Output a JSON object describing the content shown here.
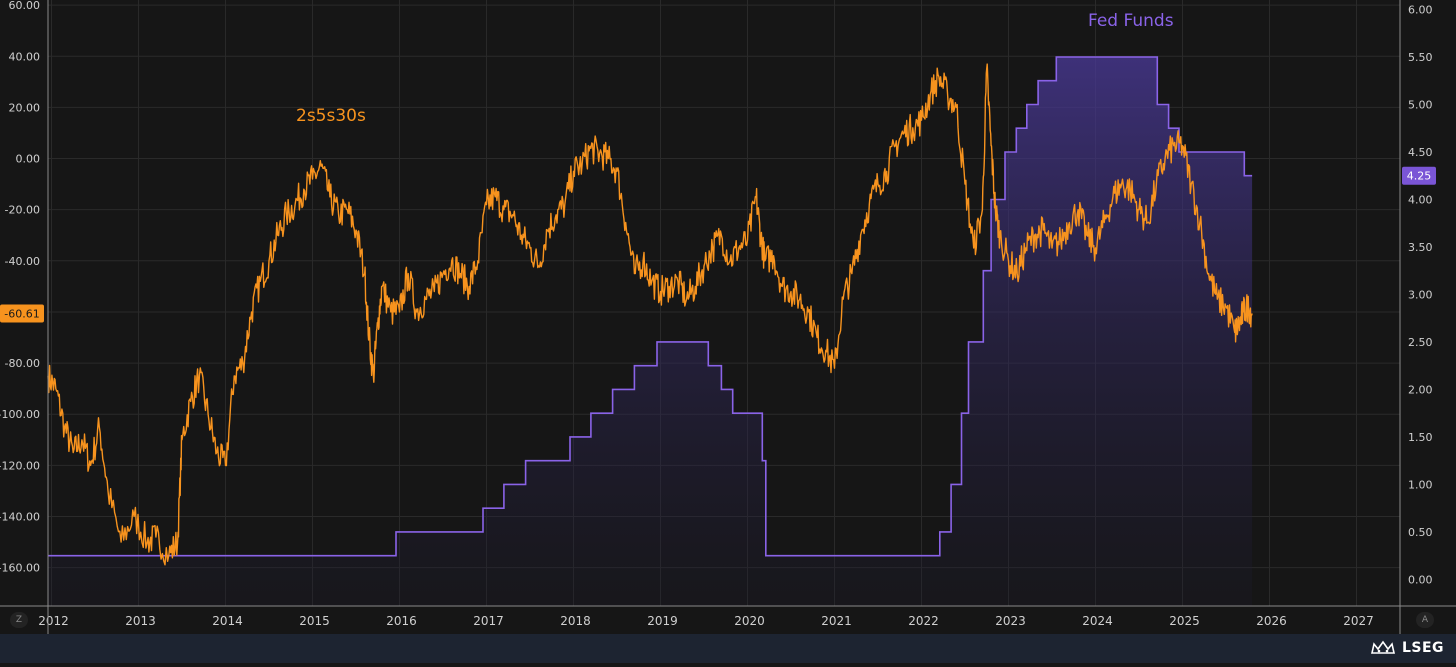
{
  "colors": {
    "background": "#161616",
    "grid": "#2a2a2a",
    "axis": "#d0d0d0",
    "spread_line": "#f7931e",
    "fed_line": "#8a63e8",
    "fed_fill_top": "#4b3a9a",
    "badge_left": "#f7931e",
    "badge_right": "#7a55d6"
  },
  "brand": {
    "name": "LSEG",
    "icon": "crown-logo-icon"
  },
  "corner_buttons": {
    "left": "Z",
    "right": "A"
  },
  "chart_data": {
    "type": "line",
    "x_ticks": [
      "2012",
      "2013",
      "2014",
      "2015",
      "2016",
      "2017",
      "2018",
      "2019",
      "2020",
      "2021",
      "2022",
      "2023",
      "2024",
      "2025",
      "2026",
      "2027"
    ],
    "xlim": [
      2011.96,
      2027.5
    ],
    "left_axis": {
      "ticks": [
        "60.00",
        "40.00",
        "20.00",
        "0.00",
        "-20.00",
        "-40.00",
        "-60.00",
        "-80.00",
        "-100.00",
        "-120.00",
        "-140.00",
        "-160.00"
      ],
      "range": [
        -175,
        62
      ],
      "current_value": "-60.61"
    },
    "right_axis": {
      "ticks": [
        "6.00",
        "5.50",
        "5.00",
        "4.50",
        "4.00",
        "3.50",
        "3.00",
        "2.50",
        "2.00",
        "1.50",
        "1.00",
        "0.50",
        "0.00"
      ],
      "range": [
        -0.28,
        6.1
      ],
      "current_value": "4.25"
    },
    "series": [
      {
        "name": "2s5s30s",
        "axis": "left",
        "x": [
          2011.96,
          2012.05,
          2012.15,
          2012.25,
          2012.35,
          2012.45,
          2012.55,
          2012.65,
          2012.8,
          2012.95,
          2013.1,
          2013.2,
          2013.35,
          2013.45,
          2013.5,
          2013.6,
          2013.7,
          2013.8,
          2013.9,
          2014.0,
          2014.1,
          2014.2,
          2014.3,
          2014.4,
          2014.5,
          2014.6,
          2014.7,
          2014.8,
          2014.9,
          2015.0,
          2015.1,
          2015.2,
          2015.3,
          2015.4,
          2015.5,
          2015.6,
          2015.65,
          2015.7,
          2015.75,
          2015.8,
          2015.9,
          2016.0,
          2016.1,
          2016.2,
          2016.3,
          2016.4,
          2016.5,
          2016.6,
          2016.7,
          2016.8,
          2016.9,
          2017.0,
          2017.1,
          2017.2,
          2017.3,
          2017.4,
          2017.5,
          2017.6,
          2017.7,
          2017.8,
          2017.9,
          2018.0,
          2018.1,
          2018.2,
          2018.3,
          2018.4,
          2018.5,
          2018.6,
          2018.7,
          2018.8,
          2018.9,
          2019.0,
          2019.1,
          2019.2,
          2019.3,
          2019.4,
          2019.5,
          2019.6,
          2019.7,
          2019.8,
          2019.9,
          2020.0,
          2020.1,
          2020.15,
          2020.2,
          2020.3,
          2020.4,
          2020.5,
          2020.6,
          2020.7,
          2020.8,
          2020.9,
          2021.0,
          2021.1,
          2021.2,
          2021.3,
          2021.4,
          2021.5,
          2021.6,
          2021.7,
          2021.8,
          2021.9,
          2022.0,
          2022.1,
          2022.2,
          2022.3,
          2022.4,
          2022.5,
          2022.6,
          2022.7,
          2022.75,
          2022.8,
          2022.85,
          2022.9,
          2023.0,
          2023.1,
          2023.2,
          2023.3,
          2023.4,
          2023.5,
          2023.6,
          2023.7,
          2023.8,
          2023.9,
          2024.0,
          2024.1,
          2024.2,
          2024.3,
          2024.4,
          2024.5,
          2024.6,
          2024.7,
          2024.8,
          2024.9,
          2025.0,
          2025.1,
          2025.2,
          2025.3,
          2025.4,
          2025.5,
          2025.6,
          2025.65,
          2025.7,
          2025.75,
          2025.8
        ],
        "values": [
          -85,
          -90,
          -105,
          -115,
          -110,
          -120,
          -105,
          -130,
          -150,
          -140,
          -150,
          -148,
          -155,
          -150,
          -110,
          -95,
          -85,
          -100,
          -115,
          -120,
          -85,
          -80,
          -60,
          -48,
          -40,
          -30,
          -22,
          -18,
          -12,
          -8,
          -3,
          -15,
          -22,
          -20,
          -28,
          -45,
          -70,
          -85,
          -65,
          -50,
          -60,
          -60,
          -45,
          -60,
          -55,
          -52,
          -45,
          -40,
          -45,
          -50,
          -40,
          -18,
          -15,
          -20,
          -22,
          -30,
          -35,
          -42,
          -28,
          -22,
          -18,
          -5,
          -2,
          4,
          2,
          0,
          -5,
          -25,
          -45,
          -40,
          -48,
          -52,
          -50,
          -48,
          -55,
          -50,
          -42,
          -35,
          -30,
          -40,
          -35,
          -32,
          -15,
          -30,
          -40,
          -38,
          -50,
          -52,
          -55,
          -60,
          -70,
          -75,
          -82,
          -55,
          -45,
          -30,
          -18,
          -10,
          -5,
          5,
          10,
          12,
          15,
          25,
          32,
          25,
          20,
          -10,
          -35,
          -20,
          35,
          5,
          -20,
          -30,
          -40,
          -45,
          -35,
          -30,
          -28,
          -35,
          -32,
          -25,
          -20,
          -30,
          -35,
          -25,
          -15,
          -10,
          -12,
          -20,
          -25,
          -10,
          0,
          5,
          5,
          -10,
          -25,
          -45,
          -55,
          -58,
          -68,
          -65,
          -60,
          -58,
          -60.61
        ]
      },
      {
        "name": "Fed Funds",
        "axis": "right",
        "step": true,
        "x": [
          2011.96,
          2015.96,
          2016.96,
          2017.2,
          2017.45,
          2017.96,
          2018.2,
          2018.45,
          2018.7,
          2018.96,
          2019.55,
          2019.7,
          2019.83,
          2020.17,
          2020.21,
          2022.21,
          2022.34,
          2022.46,
          2022.54,
          2022.71,
          2022.8,
          2022.96,
          2023.09,
          2023.21,
          2023.34,
          2023.55,
          2024.71,
          2024.84,
          2024.96,
          2025.71,
          2025.8
        ],
        "values": [
          0.25,
          0.5,
          0.75,
          1.0,
          1.25,
          1.5,
          1.75,
          2.0,
          2.25,
          2.5,
          2.25,
          2.0,
          1.75,
          1.25,
          0.25,
          0.5,
          1.0,
          1.75,
          2.5,
          3.25,
          4.0,
          4.5,
          4.75,
          5.0,
          5.25,
          5.5,
          5.0,
          4.75,
          4.5,
          4.25,
          4.25
        ]
      }
    ],
    "annotations": [
      "2s5s30s",
      "Fed Funds"
    ],
    "grid": true,
    "legend": "inline labels"
  }
}
